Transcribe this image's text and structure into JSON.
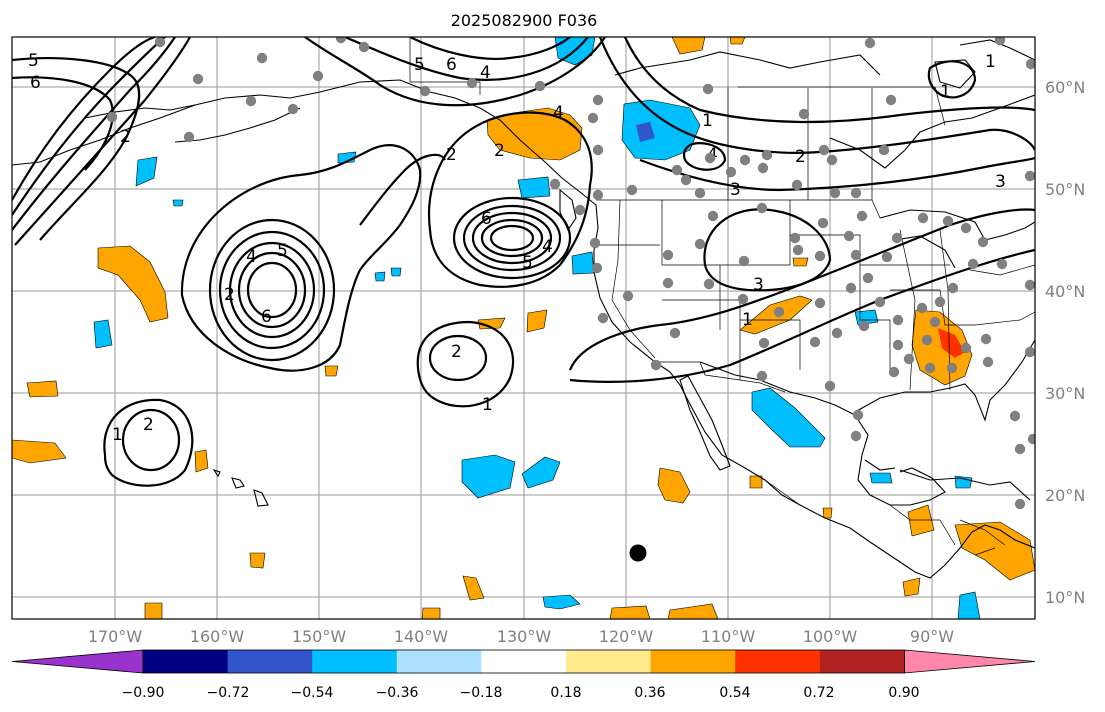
{
  "title": "2025082900 F036",
  "lat_labels": [
    "60°N",
    "50°N",
    "40°N",
    "30°N",
    "20°N",
    "10°N"
  ],
  "lon_labels": [
    "170°W",
    "160°W",
    "150°W",
    "140°W",
    "130°W",
    "120°W",
    "110°W",
    "100°W",
    "90°W"
  ],
  "colorbar": {
    "colors": [
      "#9933cc",
      "#000080",
      "#3355cc",
      "#00bfff",
      "#aee1ff",
      "#ffffff",
      "#ffeb8c",
      "#ffa500",
      "#ff3300",
      "#b22222",
      "#ff88aa"
    ],
    "tick_labels": [
      "−0.90",
      "−0.72",
      "−0.54",
      "−0.36",
      "−0.18",
      "0.18",
      "0.36",
      "0.54",
      "0.72",
      "0.90"
    ]
  },
  "contour_labels": [
    "5",
    "6",
    "2",
    "5",
    "6",
    "4",
    "4",
    "1",
    "2",
    "4",
    "3",
    "2",
    "2",
    "6",
    "5",
    "4",
    "2",
    "4",
    "5",
    "6",
    "2",
    "1",
    "1",
    "2",
    "3",
    "1",
    "1",
    "3",
    "1"
  ],
  "stations": {
    "gray_count": 104,
    "marker_color": "#808080",
    "highlight_color": "#000000"
  }
}
